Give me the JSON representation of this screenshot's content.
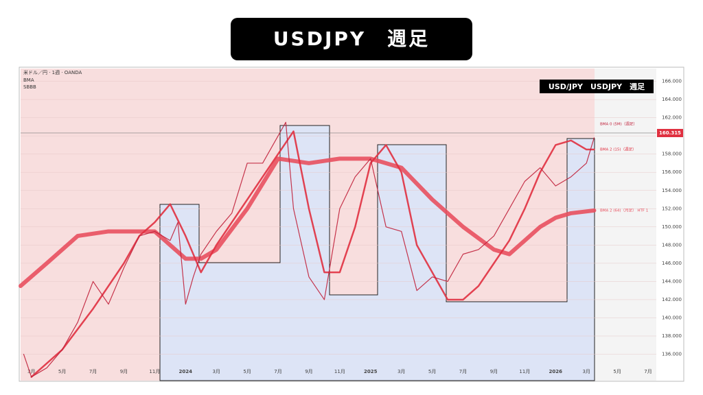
{
  "banner": "USDJPY　週足",
  "chart_data": {
    "type": "line",
    "source": "米ドル／円 · 1週 · OANDA",
    "indicators": [
      "BMA",
      "SBBB"
    ],
    "inner_title": "USD/JPY　USDJPY　週足",
    "current_price": {
      "value": 160.315,
      "label": "160.315"
    },
    "xlim": [
      1.3,
      42.8
    ],
    "xticks": [
      {
        "value": 2,
        "label": "3月"
      },
      {
        "value": 4,
        "label": "5月"
      },
      {
        "value": 6,
        "label": "7月"
      },
      {
        "value": 8,
        "label": "9月"
      },
      {
        "value": 10,
        "label": "11月"
      },
      {
        "value": 12,
        "label": "2024"
      },
      {
        "value": 14,
        "label": "3月"
      },
      {
        "value": 16,
        "label": "5月"
      },
      {
        "value": 18,
        "label": "7月"
      },
      {
        "value": 20,
        "label": "9月"
      },
      {
        "value": 22,
        "label": "11月"
      },
      {
        "value": 24,
        "label": "2025"
      },
      {
        "value": 26,
        "label": "3月"
      },
      {
        "value": 28,
        "label": "5月"
      },
      {
        "value": 30,
        "label": "7月"
      },
      {
        "value": 32,
        "label": "9月"
      },
      {
        "value": 34,
        "label": "11月"
      },
      {
        "value": 36,
        "label": "2026"
      },
      {
        "value": 38,
        "label": "3月"
      },
      {
        "value": 40,
        "label": "5月"
      },
      {
        "value": 42,
        "label": "7月"
      }
    ],
    "ylim": [
      133.1,
      167.4
    ],
    "yticks": [
      {
        "value": 136,
        "label": "136.000"
      },
      {
        "value": 138,
        "label": "138.000"
      },
      {
        "value": 140,
        "label": "140.000"
      },
      {
        "value": 142,
        "label": "142.000"
      },
      {
        "value": 144,
        "label": "144.000"
      },
      {
        "value": 146,
        "label": "146.000"
      },
      {
        "value": 148,
        "label": "148.000"
      },
      {
        "value": 150,
        "label": "150.000"
      },
      {
        "value": 152,
        "label": "152.000"
      },
      {
        "value": 154,
        "label": "154.000"
      },
      {
        "value": 156,
        "label": "156.000"
      },
      {
        "value": 158,
        "label": "158.000"
      },
      {
        "value": 160,
        "label": "160.000"
      },
      {
        "value": 162,
        "label": "162.000"
      },
      {
        "value": 164,
        "label": "164.000"
      },
      {
        "value": 166,
        "label": "166.000"
      }
    ],
    "series": [
      {
        "name": "BMA 2 (64)（月足） HTF 1",
        "color": "#e8505f",
        "width": 6,
        "x": [
          1.3,
          3,
          5,
          7,
          9,
          10,
          11,
          12,
          13,
          14,
          16,
          18,
          20,
          22,
          24,
          25,
          26,
          28,
          30,
          32,
          33,
          34,
          35,
          36,
          37,
          38.5
        ],
        "values": [
          143.5,
          146,
          149,
          149.5,
          149.5,
          149.5,
          148,
          146.5,
          146.5,
          147.5,
          152,
          157.5,
          157,
          157.5,
          157.5,
          157,
          156.5,
          153,
          150,
          147.5,
          147,
          148.5,
          150,
          151,
          151.5,
          151.8
        ]
      },
      {
        "name": "BMA 2 (15)（週足）",
        "color": "#e03040",
        "width": 2.5,
        "x": [
          2,
          4,
          6,
          8,
          9,
          10,
          11,
          12,
          13,
          14,
          16,
          18,
          19,
          20,
          21,
          22,
          23,
          24,
          25,
          26,
          27,
          28,
          29,
          30,
          31,
          32,
          33,
          34,
          35,
          36,
          37,
          38,
          38.5
        ],
        "values": [
          133.5,
          136.5,
          141,
          146,
          149,
          150.5,
          152.5,
          149,
          145,
          148,
          153,
          158,
          160.5,
          152,
          145,
          145,
          150,
          157,
          159,
          156,
          148,
          145,
          142,
          142,
          143.5,
          146,
          148.5,
          152,
          156,
          159,
          159.5,
          158.5,
          158.5
        ]
      },
      {
        "name": "BMA 0 (5M)（週足）",
        "color": "#c0203a",
        "width": 1.2,
        "x": [
          1.5,
          2,
          3,
          4,
          5,
          6,
          7,
          8,
          9,
          10,
          11,
          11.5,
          12,
          12.5,
          13,
          14,
          15,
          16,
          17,
          18,
          18.5,
          19,
          20,
          21,
          22,
          23,
          24,
          25,
          26,
          27,
          28,
          29,
          30,
          31,
          32,
          33,
          34,
          35,
          36,
          37,
          38,
          38.5
        ],
        "values": [
          136,
          133.5,
          134.5,
          136.5,
          139.5,
          144,
          141.5,
          145.5,
          149,
          149.5,
          148.5,
          150.5,
          141.5,
          144.5,
          147,
          149.5,
          151.5,
          157,
          157,
          160,
          161.5,
          152,
          144.5,
          142,
          152,
          155.5,
          157.5,
          150,
          149.5,
          143,
          144.5,
          144,
          147,
          147.5,
          149,
          152,
          155,
          156.5,
          154.5,
          155.5,
          157,
          159.8
        ]
      }
    ],
    "grid": true
  }
}
